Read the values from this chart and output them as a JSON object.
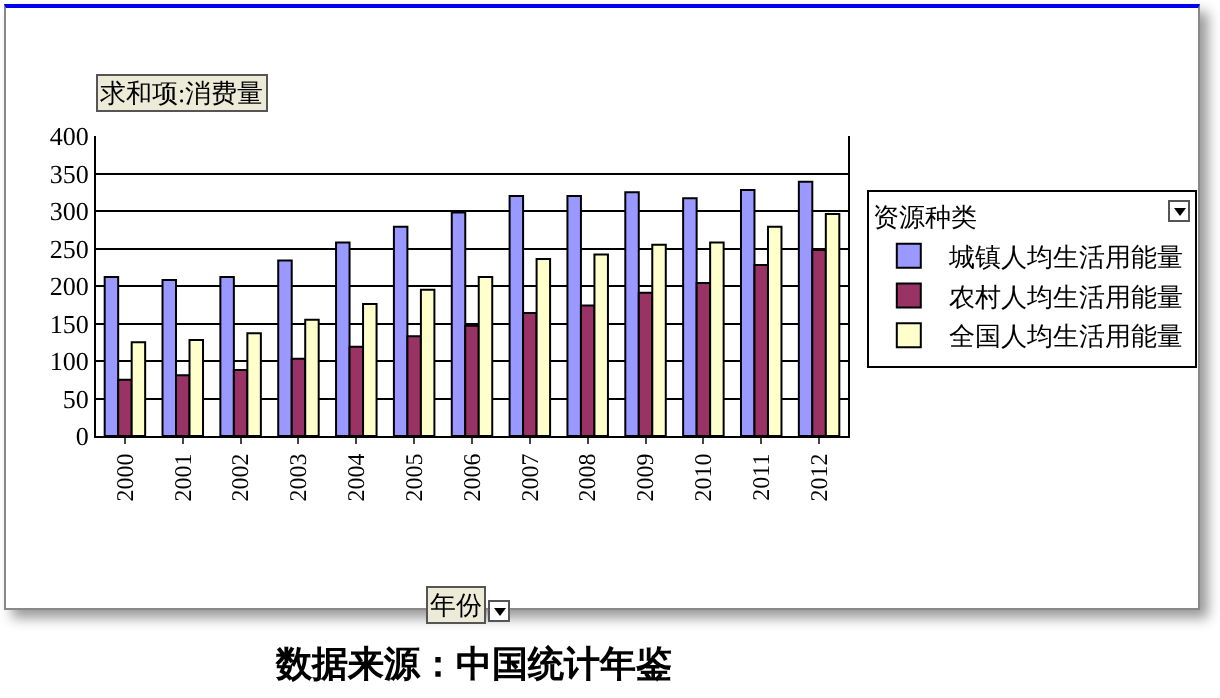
{
  "chart_data": {
    "type": "bar",
    "ylabel": "求和项:消费量",
    "xlabel": "年份",
    "legend_title": "资源种类",
    "categories": [
      "2000",
      "2001",
      "2002",
      "2003",
      "2004",
      "2005",
      "2006",
      "2007",
      "2008",
      "2009",
      "2010",
      "2011",
      "2012"
    ],
    "series": [
      {
        "name": "城镇人均生活用能量",
        "color": "#9999ff",
        "values": [
          212,
          208,
          212,
          234,
          258,
          279,
          298,
          320,
          320,
          325,
          317,
          328,
          339
        ]
      },
      {
        "name": "农村人均生活用能量",
        "color": "#993366",
        "values": [
          75,
          81,
          88,
          103,
          119,
          133,
          147,
          164,
          174,
          191,
          204,
          228,
          248
        ]
      },
      {
        "name": "全国人均生活用能量",
        "color": "#ffffcc",
        "values": [
          125,
          128,
          137,
          155,
          176,
          195,
          212,
          236,
          242,
          255,
          258,
          279,
          296
        ]
      }
    ],
    "ylim": [
      0,
      400
    ],
    "yticks": [
      0,
      50,
      100,
      150,
      200,
      250,
      300,
      350,
      400
    ],
    "grid": "y",
    "legend": "right",
    "annotations": [
      "数据来源：中国统计年鉴"
    ]
  }
}
